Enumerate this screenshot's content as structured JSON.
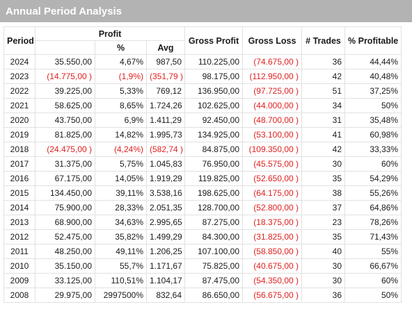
{
  "title": "Annual Period Analysis",
  "colors": {
    "negative": "#e02020",
    "title_bar": "#b3b3b3"
  },
  "headers": {
    "period": "Period",
    "profit": "Profit",
    "pct": "%",
    "avg": "Avg",
    "gross_profit": "Gross Profit",
    "gross_loss": "Gross Loss",
    "trades": "# Trades",
    "pct_profitable": "% Profitable"
  },
  "rows": [
    {
      "period": "2024",
      "profit": "35.550,00",
      "pct": "4,67%",
      "avg": "987,50",
      "gross_profit": "110.225,00",
      "gross_loss": "(74.675,00 )",
      "trades": "36",
      "pct_profitable": "44,44%",
      "neg": false
    },
    {
      "period": "2023",
      "profit": "(14.775,00 )",
      "pct": "(1,9%)",
      "avg": "(351,79 )",
      "gross_profit": "98.175,00",
      "gross_loss": "(112.950,00 )",
      "trades": "42",
      "pct_profitable": "40,48%",
      "neg": true
    },
    {
      "period": "2022",
      "profit": "39.225,00",
      "pct": "5,33%",
      "avg": "769,12",
      "gross_profit": "136.950,00",
      "gross_loss": "(97.725,00 )",
      "trades": "51",
      "pct_profitable": "37,25%",
      "neg": false
    },
    {
      "period": "2021",
      "profit": "58.625,00",
      "pct": "8,65%",
      "avg": "1.724,26",
      "gross_profit": "102.625,00",
      "gross_loss": "(44.000,00 )",
      "trades": "34",
      "pct_profitable": "50%",
      "neg": false
    },
    {
      "period": "2020",
      "profit": "43.750,00",
      "pct": "6,9%",
      "avg": "1.411,29",
      "gross_profit": "92.450,00",
      "gross_loss": "(48.700,00 )",
      "trades": "31",
      "pct_profitable": "35,48%",
      "neg": false
    },
    {
      "period": "2019",
      "profit": "81.825,00",
      "pct": "14,82%",
      "avg": "1.995,73",
      "gross_profit": "134.925,00",
      "gross_loss": "(53.100,00 )",
      "trades": "41",
      "pct_profitable": "60,98%",
      "neg": false
    },
    {
      "period": "2018",
      "profit": "(24.475,00 )",
      "pct": "(4,24%)",
      "avg": "(582,74 )",
      "gross_profit": "84.875,00",
      "gross_loss": "(109.350,00 )",
      "trades": "42",
      "pct_profitable": "33,33%",
      "neg": true
    },
    {
      "period": "2017",
      "profit": "31.375,00",
      "pct": "5,75%",
      "avg": "1.045,83",
      "gross_profit": "76.950,00",
      "gross_loss": "(45.575,00 )",
      "trades": "30",
      "pct_profitable": "60%",
      "neg": false
    },
    {
      "period": "2016",
      "profit": "67.175,00",
      "pct": "14,05%",
      "avg": "1.919,29",
      "gross_profit": "119.825,00",
      "gross_loss": "(52.650,00 )",
      "trades": "35",
      "pct_profitable": "54,29%",
      "neg": false
    },
    {
      "period": "2015",
      "profit": "134.450,00",
      "pct": "39,11%",
      "avg": "3.538,16",
      "gross_profit": "198.625,00",
      "gross_loss": "(64.175,00 )",
      "trades": "38",
      "pct_profitable": "55,26%",
      "neg": false
    },
    {
      "period": "2014",
      "profit": "75.900,00",
      "pct": "28,33%",
      "avg": "2.051,35",
      "gross_profit": "128.700,00",
      "gross_loss": "(52.800,00 )",
      "trades": "37",
      "pct_profitable": "64,86%",
      "neg": false
    },
    {
      "period": "2013",
      "profit": "68.900,00",
      "pct": "34,63%",
      "avg": "2.995,65",
      "gross_profit": "87.275,00",
      "gross_loss": "(18.375,00 )",
      "trades": "23",
      "pct_profitable": "78,26%",
      "neg": false
    },
    {
      "period": "2012",
      "profit": "52.475,00",
      "pct": "35,82%",
      "avg": "1.499,29",
      "gross_profit": "84.300,00",
      "gross_loss": "(31.825,00 )",
      "trades": "35",
      "pct_profitable": "71,43%",
      "neg": false
    },
    {
      "period": "2011",
      "profit": "48.250,00",
      "pct": "49,11%",
      "avg": "1.206,25",
      "gross_profit": "107.100,00",
      "gross_loss": "(58.850,00 )",
      "trades": "40",
      "pct_profitable": "55%",
      "neg": false
    },
    {
      "period": "2010",
      "profit": "35.150,00",
      "pct": "55,7%",
      "avg": "1.171,67",
      "gross_profit": "75.825,00",
      "gross_loss": "(40.675,00 )",
      "trades": "30",
      "pct_profitable": "66,67%",
      "neg": false
    },
    {
      "period": "2009",
      "profit": "33.125,00",
      "pct": "110,51%",
      "avg": "1.104,17",
      "gross_profit": "87.475,00",
      "gross_loss": "(54.350,00 )",
      "trades": "30",
      "pct_profitable": "60%",
      "neg": false
    },
    {
      "period": "2008",
      "profit": "29.975,00",
      "pct": "2997500%",
      "avg": "832,64",
      "gross_profit": "86.650,00",
      "gross_loss": "(56.675,00 )",
      "trades": "36",
      "pct_profitable": "50%",
      "neg": false
    }
  ]
}
